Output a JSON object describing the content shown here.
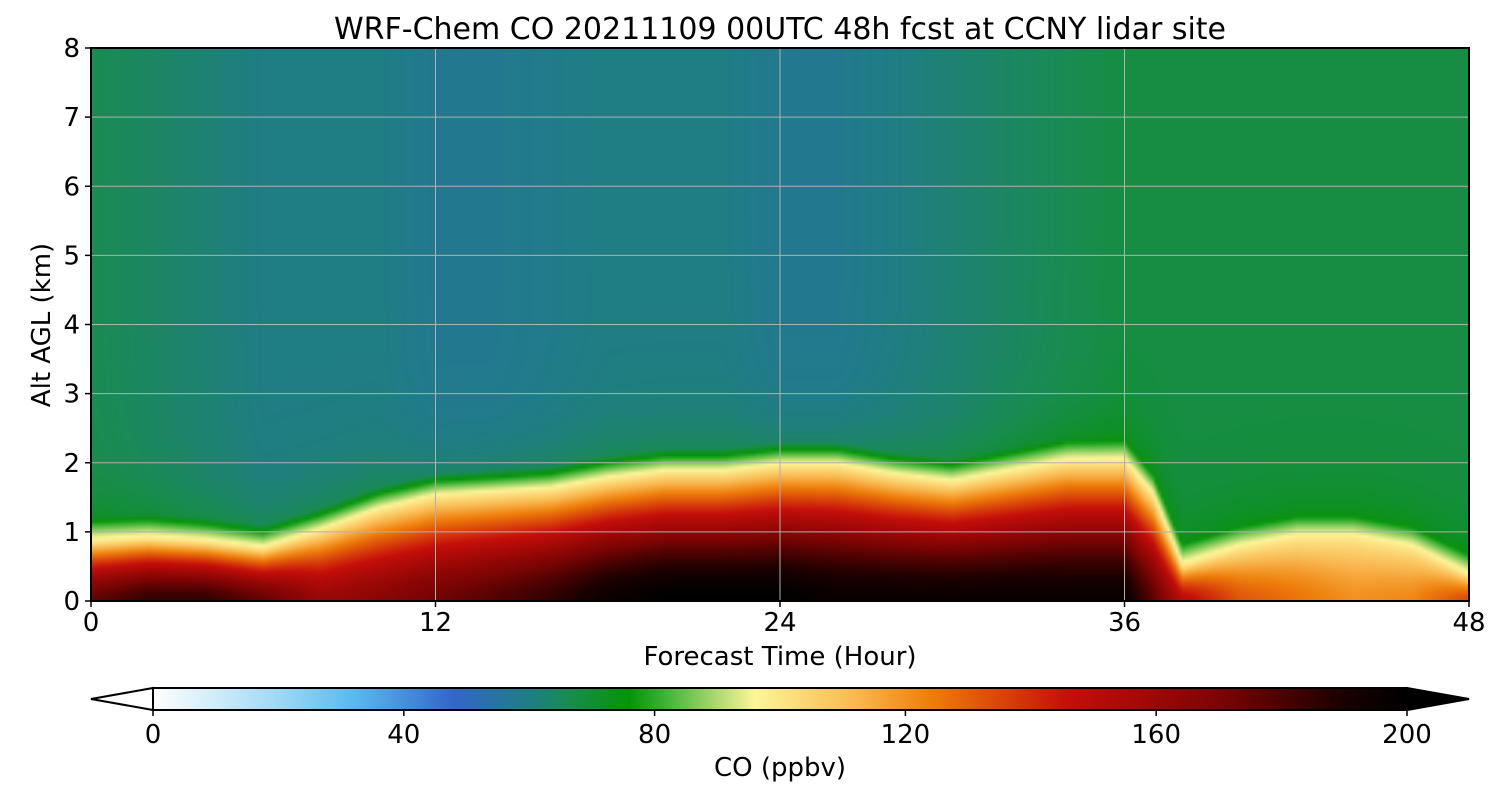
{
  "chart_data": {
    "type": "heatmap",
    "title": "WRF-Chem CO  20211109 00UTC 48h fcst at CCNY lidar site",
    "xlabel": "Forecast Time (Hour)",
    "ylabel": "Alt AGL (km)",
    "xlim": [
      0,
      48
    ],
    "ylim": [
      0,
      8
    ],
    "xticks": [
      "0",
      "12",
      "24",
      "36",
      "48"
    ],
    "yticks": [
      "0",
      "1",
      "2",
      "3",
      "4",
      "5",
      "6",
      "7",
      "8"
    ],
    "grid": true,
    "colorbar": {
      "label": "CO  (ppbv)",
      "range": [
        0,
        200
      ],
      "ticks": [
        "0",
        "40",
        "80",
        "120",
        "160",
        "200"
      ],
      "extend": "both",
      "stops": [
        {
          "v": 0,
          "c": "#ffffff"
        },
        {
          "v": 20,
          "c": "#9fd8f4"
        },
        {
          "v": 32,
          "c": "#5ab9ee"
        },
        {
          "v": 48,
          "c": "#3366c8"
        },
        {
          "v": 60,
          "c": "#1f7d84"
        },
        {
          "v": 66,
          "c": "#1a8b52"
        },
        {
          "v": 76,
          "c": "#069406"
        },
        {
          "v": 82,
          "c": "#42b43a"
        },
        {
          "v": 96,
          "c": "#fdf59a"
        },
        {
          "v": 112,
          "c": "#f9b850"
        },
        {
          "v": 124,
          "c": "#ee7e0a"
        },
        {
          "v": 146,
          "c": "#c50e0a"
        },
        {
          "v": 170,
          "c": "#7c0404"
        },
        {
          "v": 190,
          "c": "#1a0000"
        },
        {
          "v": 200,
          "c": "#000000"
        }
      ]
    },
    "x": [
      0,
      2,
      4,
      6,
      8,
      10,
      12,
      14,
      16,
      18,
      20,
      22,
      24,
      26,
      28,
      30,
      32,
      34,
      36,
      37,
      38,
      40,
      42,
      44,
      46,
      48
    ],
    "boundary_layer_top_km": [
      0.85,
      0.9,
      0.85,
      0.75,
      1.0,
      1.3,
      1.5,
      1.55,
      1.6,
      1.75,
      1.85,
      1.85,
      1.95,
      1.95,
      1.8,
      1.7,
      1.85,
      2.0,
      2.0,
      1.5,
      0.5,
      0.75,
      0.9,
      0.9,
      0.75,
      0.35
    ],
    "surface_max_co_ppbv": [
      175,
      185,
      185,
      175,
      160,
      165,
      172,
      178,
      185,
      195,
      200,
      200,
      200,
      196,
      196,
      196,
      196,
      196,
      196,
      176,
      150,
      132,
      126,
      120,
      122,
      135
    ],
    "free_troposphere_co_ppbv": [
      66,
      64,
      62,
      60,
      60,
      60,
      58,
      58,
      59,
      60,
      60,
      60,
      58,
      58,
      60,
      62,
      64,
      66,
      68,
      68,
      68,
      68,
      68,
      68,
      68,
      68
    ]
  }
}
